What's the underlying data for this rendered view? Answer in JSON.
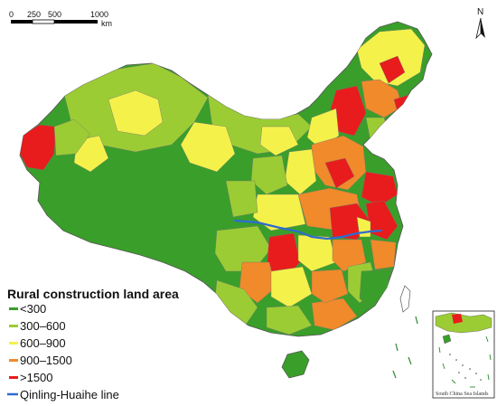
{
  "map": {
    "scale_bar": {
      "ticks": [
        "0",
        "250",
        "500",
        "1000"
      ],
      "unit": "km"
    },
    "north_arrow": {
      "label": "N",
      "icon": "north-arrow-icon"
    },
    "legend": {
      "title": "Rural construction land area",
      "classes": [
        {
          "label": "<300",
          "color": "#3a9e2a"
        },
        {
          "label": "300–600",
          "color": "#9ccc34"
        },
        {
          "label": "600–900",
          "color": "#f4f24a"
        },
        {
          "label": "900–1500",
          "color": "#f08a2a"
        },
        {
          "label": ">1500",
          "color": "#e81c1c"
        }
      ],
      "line": {
        "label": "Qinling-Huaihe line",
        "color": "#2f6bd0"
      }
    },
    "inset": {
      "label": "South China Sea Islands"
    }
  }
}
